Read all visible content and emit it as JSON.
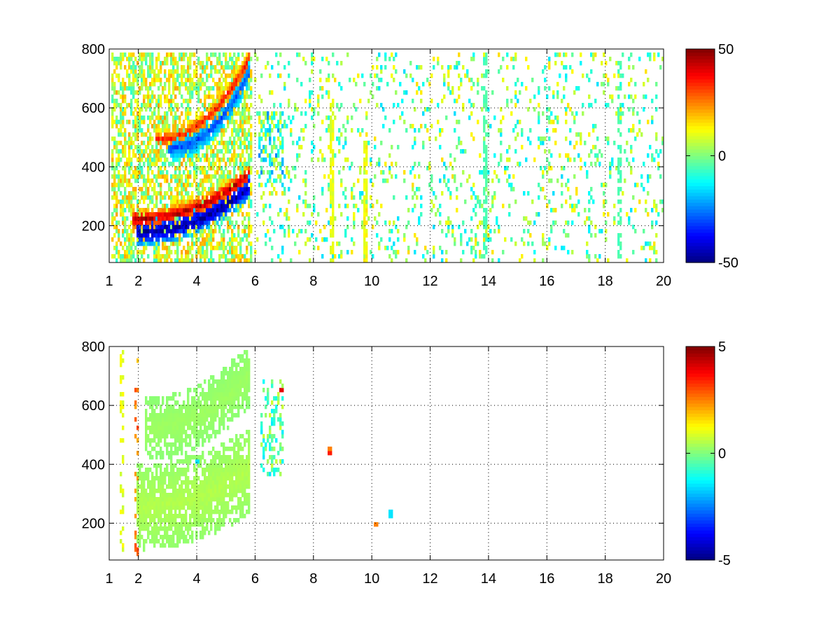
{
  "chart_data": [
    {
      "type": "heatmap",
      "title": "",
      "xlabel": "",
      "ylabel": "",
      "xlim": [
        1,
        20
      ],
      "ylim": [
        75,
        800
      ],
      "x_ticks": [
        "1",
        "2",
        "4",
        "6",
        "8",
        "10",
        "12",
        "14",
        "16",
        "18",
        "20"
      ],
      "y_ticks": [
        "200",
        "400",
        "600",
        "800"
      ],
      "grid": true,
      "colorbar": {
        "min": -50,
        "max": 50,
        "ticks": [
          "50",
          "0",
          "-50"
        ],
        "colormap": "jet"
      },
      "features": [
        {
          "kind": "curve",
          "x0": 1.8,
          "x1": 5.8,
          "y0": 225,
          "y1": 380,
          "value": 45,
          "width": 35
        },
        {
          "kind": "curve",
          "x0": 1.9,
          "x1": 5.85,
          "y0": 180,
          "y1": 340,
          "value": -48,
          "width": 45
        },
        {
          "kind": "curve",
          "x0": 2.6,
          "x1": 5.8,
          "y0": 500,
          "y1": 780,
          "value": 35,
          "width": 35
        },
        {
          "kind": "curve",
          "x0": 3.0,
          "x1": 5.85,
          "y0": 470,
          "y1": 740,
          "value": -30,
          "width": 45
        },
        {
          "kind": "region",
          "x0": 1.05,
          "x1": 5.9,
          "y0": 75,
          "y1": 800,
          "density": 0.6,
          "vmin": -8,
          "vmax": 22
        },
        {
          "kind": "region",
          "x0": 6.1,
          "x1": 7.0,
          "y0": 340,
          "y1": 600,
          "density": 0.5,
          "vmin": -25,
          "vmax": 12
        },
        {
          "kind": "region",
          "x0": 6.0,
          "x1": 20,
          "y0": 75,
          "y1": 800,
          "density": 0.13,
          "vmin": -16,
          "vmax": 16
        },
        {
          "kind": "column",
          "x": 8.6,
          "y0": 75,
          "y1": 640,
          "value": 10,
          "density": 0.75
        },
        {
          "kind": "column",
          "x": 9.8,
          "y0": 75,
          "y1": 500,
          "value": 12,
          "density": 0.85
        },
        {
          "kind": "column",
          "x": 13.9,
          "y0": 75,
          "y1": 800,
          "value": -5,
          "density": 0.55
        },
        {
          "kind": "column",
          "x": 18.5,
          "y0": 75,
          "y1": 800,
          "value": -5,
          "density": 0.55
        }
      ]
    },
    {
      "type": "heatmap",
      "title": "",
      "xlabel": "",
      "ylabel": "",
      "xlim": [
        1,
        20
      ],
      "ylim": [
        75,
        800
      ],
      "x_ticks": [
        "1",
        "2",
        "4",
        "6",
        "8",
        "10",
        "12",
        "14",
        "16",
        "18",
        "20"
      ],
      "y_ticks": [
        "200",
        "400",
        "600",
        "800"
      ],
      "grid": true,
      "colorbar": {
        "min": -5,
        "max": 5,
        "ticks": [
          "5",
          "0",
          "-5"
        ],
        "colormap": "jet"
      },
      "features": [
        {
          "kind": "curve",
          "x0": 1.9,
          "x1": 5.85,
          "y0": 260,
          "y1": 390,
          "value": 0.5,
          "width": 150
        },
        {
          "kind": "curve",
          "x0": 2.2,
          "x1": 5.85,
          "y0": 530,
          "y1": 720,
          "value": 0.3,
          "width": 110
        },
        {
          "kind": "region",
          "x0": 6.2,
          "x1": 6.95,
          "y0": 370,
          "y1": 700,
          "density": 0.35,
          "vmin": -1.5,
          "vmax": 0.8
        },
        {
          "kind": "column",
          "x": 1.45,
          "y0": 90,
          "y1": 800,
          "value": 1,
          "density": 0.3
        },
        {
          "kind": "column",
          "x": 1.95,
          "y0": 90,
          "y1": 800,
          "value": 2.5,
          "density": 0.2
        },
        {
          "kind": "point",
          "x": 8.55,
          "y": 440,
          "value": 3.5
        },
        {
          "kind": "point",
          "x": 8.55,
          "y": 455,
          "value": 2.5
        },
        {
          "kind": "point",
          "x": 10.15,
          "y": 200,
          "value": 2.5
        },
        {
          "kind": "point",
          "x": 10.65,
          "y": 235,
          "value": -1.5
        },
        {
          "kind": "point",
          "x": 4.0,
          "y": 420,
          "value": -1.5
        },
        {
          "kind": "point",
          "x": 6.9,
          "y": 660,
          "value": 4.0
        }
      ]
    }
  ]
}
